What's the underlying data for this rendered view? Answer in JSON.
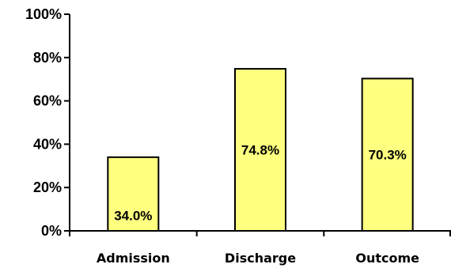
{
  "chart_data": {
    "type": "bar",
    "categories": [
      "Admission",
      "Discharge",
      "Outcome"
    ],
    "values": [
      34.0,
      74.8,
      70.3
    ],
    "data_labels": [
      "34.0%",
      "74.8%",
      "70.3%"
    ],
    "ylim": [
      0,
      100
    ],
    "y_ticks": [
      0,
      20,
      40,
      60,
      80,
      100
    ],
    "y_tick_labels": [
      "0%",
      "20%",
      "40%",
      "60%",
      "80%",
      "100%"
    ],
    "grid": false,
    "legend": "none",
    "colors": {
      "bar_fill": "#ffff80",
      "bar_stroke": "#000000",
      "axis": "#000000"
    }
  }
}
